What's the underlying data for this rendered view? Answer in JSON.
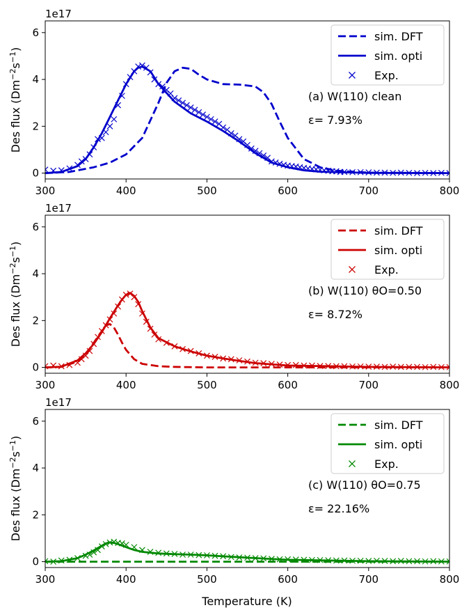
{
  "figure": {
    "xlabel": "Temperature (K)",
    "ylabel_main": "Des flux (Dm",
    "ylabel_sup1": "−2",
    "ylabel_mid": "s",
    "ylabel_sup2": "−1",
    "ylabel_end": ")",
    "offset_label": "1e17"
  },
  "chart_data": [
    {
      "type": "line",
      "panel_label": "(a) W(110) clean",
      "error_label": "ε= 7.93%",
      "color": "#0000cc",
      "xlim": [
        300,
        800
      ],
      "ylim": [
        -0.25,
        6.5
      ],
      "x_ticks": [
        "300",
        "400",
        "500",
        "600",
        "700",
        "800"
      ],
      "y_ticks": [
        "0",
        "2",
        "4",
        "6"
      ],
      "legend": {
        "position": "top-right",
        "dft": "sim. DFT",
        "opti": "sim. opti",
        "exp": "Exp."
      },
      "series": [
        {
          "name": "sim. DFT",
          "style": "dashed",
          "x": [
            300,
            330,
            360,
            380,
            400,
            420,
            440,
            450,
            460,
            470,
            480,
            490,
            500,
            520,
            540,
            560,
            570,
            580,
            590,
            600,
            620,
            640,
            660,
            700,
            800
          ],
          "y": [
            0,
            0.05,
            0.25,
            0.45,
            0.8,
            1.5,
            3.0,
            3.85,
            4.35,
            4.5,
            4.45,
            4.2,
            4.0,
            3.8,
            3.78,
            3.7,
            3.45,
            2.95,
            2.2,
            1.5,
            0.6,
            0.25,
            0.1,
            0.02,
            0
          ]
        },
        {
          "name": "sim. opti",
          "style": "solid",
          "x": [
            300,
            320,
            340,
            350,
            360,
            370,
            380,
            390,
            400,
            410,
            415,
            420,
            430,
            440,
            460,
            480,
            500,
            520,
            540,
            560,
            580,
            600,
            620,
            640,
            700,
            800
          ],
          "y": [
            0,
            0.05,
            0.3,
            0.6,
            1.1,
            1.7,
            2.4,
            3.1,
            3.8,
            4.35,
            4.5,
            4.55,
            4.35,
            3.8,
            3.05,
            2.55,
            2.2,
            1.8,
            1.35,
            0.85,
            0.45,
            0.25,
            0.12,
            0.06,
            0.01,
            0
          ]
        },
        {
          "name": "Exp.",
          "style": "markers",
          "x": [
            300,
            310,
            320,
            330,
            340,
            345,
            350,
            355,
            360,
            365,
            370,
            375,
            380,
            385,
            390,
            395,
            400,
            405,
            410,
            415,
            420,
            425,
            430,
            435,
            440,
            445,
            450,
            455,
            460,
            465,
            470,
            475,
            480,
            485,
            490,
            495,
            500,
            505,
            510,
            515,
            520,
            525,
            530,
            535,
            540,
            545,
            550,
            555,
            560,
            565,
            570,
            575,
            580,
            585,
            590,
            595,
            600,
            605,
            610,
            615,
            620,
            625,
            630,
            635,
            640,
            645,
            650,
            655,
            660,
            665,
            670,
            680,
            690,
            700,
            710,
            720,
            730,
            740,
            750,
            760,
            770,
            780,
            790,
            800
          ],
          "y": [
            0.15,
            0.1,
            0.12,
            0.2,
            0.35,
            0.5,
            0.6,
            0.8,
            1.1,
            1.45,
            1.5,
            1.75,
            2.0,
            2.3,
            2.9,
            3.3,
            3.8,
            4.1,
            4.35,
            4.55,
            4.6,
            4.5,
            4.3,
            4.0,
            3.8,
            3.7,
            3.55,
            3.4,
            3.2,
            3.1,
            3.0,
            2.9,
            2.8,
            2.7,
            2.6,
            2.5,
            2.4,
            2.3,
            2.2,
            2.1,
            1.95,
            1.85,
            1.7,
            1.6,
            1.45,
            1.35,
            1.2,
            1.05,
            0.95,
            0.85,
            0.75,
            0.65,
            0.5,
            0.45,
            0.4,
            0.35,
            0.32,
            0.3,
            0.28,
            0.25,
            0.22,
            0.2,
            0.18,
            0.16,
            0.14,
            0.12,
            0.1,
            0.08,
            0.08,
            0.05,
            0.05,
            0.04,
            0.04,
            0.03,
            0.02,
            0.02,
            0.01,
            0.02,
            0.01,
            0,
            0.01,
            0,
            0.01,
            0
          ]
        }
      ]
    },
    {
      "type": "line",
      "panel_label": "(b) W(110) θO=0.50",
      "error_label": "ε= 8.72%",
      "color": "#cc0000",
      "xlim": [
        300,
        800
      ],
      "ylim": [
        -0.25,
        6.5
      ],
      "x_ticks": [
        "300",
        "400",
        "500",
        "600",
        "700",
        "800"
      ],
      "y_ticks": [
        "0",
        "2",
        "4",
        "6"
      ],
      "legend": {
        "position": "top-right",
        "dft": "sim. DFT",
        "opti": "sim. opti",
        "exp": "Exp."
      },
      "series": [
        {
          "name": "sim. DFT",
          "style": "dashed",
          "x": [
            300,
            320,
            340,
            350,
            360,
            370,
            375,
            380,
            385,
            390,
            395,
            400,
            410,
            420,
            440,
            460,
            500,
            800
          ],
          "y": [
            0,
            0.02,
            0.25,
            0.55,
            1.05,
            1.55,
            1.8,
            1.85,
            1.7,
            1.4,
            1.05,
            0.75,
            0.35,
            0.15,
            0.05,
            0.02,
            0,
            0
          ]
        },
        {
          "name": "sim. opti",
          "style": "solid",
          "x": [
            300,
            320,
            340,
            350,
            360,
            370,
            380,
            390,
            395,
            400,
            405,
            410,
            415,
            420,
            430,
            440,
            460,
            480,
            500,
            520,
            540,
            560,
            600,
            700,
            800
          ],
          "y": [
            0,
            0.03,
            0.3,
            0.6,
            1.0,
            1.5,
            2.1,
            2.65,
            2.9,
            3.1,
            3.18,
            3.05,
            2.8,
            2.4,
            1.7,
            1.25,
            0.9,
            0.68,
            0.5,
            0.38,
            0.28,
            0.18,
            0.08,
            0.02,
            0
          ]
        },
        {
          "name": "Exp.",
          "style": "markers",
          "x": [
            300,
            310,
            320,
            330,
            340,
            345,
            350,
            355,
            360,
            365,
            370,
            375,
            380,
            385,
            390,
            395,
            400,
            405,
            410,
            415,
            420,
            425,
            430,
            435,
            440,
            450,
            460,
            470,
            480,
            490,
            500,
            510,
            520,
            530,
            540,
            550,
            560,
            570,
            580,
            590,
            600,
            610,
            620,
            630,
            640,
            650,
            660,
            670,
            680,
            690,
            700,
            710,
            720,
            730,
            740,
            750,
            760,
            770,
            780,
            790,
            800
          ],
          "y": [
            0.05,
            0.08,
            0.05,
            0.1,
            0.2,
            0.35,
            0.5,
            0.7,
            1.0,
            1.3,
            1.55,
            1.8,
            2.05,
            2.3,
            2.6,
            2.9,
            3.1,
            3.15,
            3.0,
            2.7,
            2.3,
            1.95,
            1.65,
            1.4,
            1.2,
            1.05,
            0.9,
            0.78,
            0.7,
            0.6,
            0.5,
            0.45,
            0.38,
            0.35,
            0.3,
            0.25,
            0.2,
            0.18,
            0.15,
            0.12,
            0.1,
            0.1,
            0.08,
            0.08,
            0.06,
            0.06,
            0.05,
            0.05,
            0.04,
            0.04,
            0.03,
            0.03,
            0.02,
            0.03,
            0.02,
            0.02,
            0.02,
            0.01,
            0.02,
            0.01,
            0.01
          ]
        }
      ]
    },
    {
      "type": "line",
      "panel_label": "(c) W(110) θO=0.75",
      "error_label": "ε= 22.16%",
      "color": "#008800",
      "xlim": [
        300,
        800
      ],
      "ylim": [
        -0.25,
        6.5
      ],
      "x_ticks": [
        "300",
        "400",
        "500",
        "600",
        "700",
        "800"
      ],
      "y_ticks": [
        "0",
        "2",
        "4",
        "6"
      ],
      "legend": {
        "position": "top-right",
        "dft": "sim. DFT",
        "opti": "sim. opti",
        "exp": "Exp."
      },
      "series": [
        {
          "name": "sim. DFT",
          "style": "dashed",
          "x": [
            300,
            800
          ],
          "y": [
            0,
            0
          ]
        },
        {
          "name": "sim. opti",
          "style": "solid",
          "x": [
            300,
            320,
            340,
            350,
            360,
            370,
            375,
            380,
            385,
            390,
            400,
            410,
            420,
            440,
            460,
            480,
            500,
            520,
            540,
            560,
            600,
            700,
            800
          ],
          "y": [
            0,
            0.02,
            0.15,
            0.3,
            0.48,
            0.68,
            0.78,
            0.82,
            0.8,
            0.75,
            0.62,
            0.5,
            0.42,
            0.35,
            0.32,
            0.3,
            0.27,
            0.23,
            0.19,
            0.15,
            0.08,
            0.02,
            0
          ]
        },
        {
          "name": "Exp.",
          "style": "markers",
          "x": [
            300,
            310,
            320,
            330,
            340,
            350,
            355,
            360,
            365,
            370,
            375,
            380,
            385,
            390,
            395,
            400,
            410,
            420,
            430,
            440,
            450,
            460,
            470,
            480,
            490,
            500,
            510,
            520,
            530,
            540,
            550,
            560,
            570,
            580,
            590,
            600,
            610,
            620,
            630,
            640,
            650,
            660,
            670,
            680,
            690,
            700,
            710,
            720,
            730,
            740,
            750,
            760,
            770,
            780,
            790,
            800
          ],
          "y": [
            0.02,
            0,
            0.05,
            0.08,
            0.15,
            0.25,
            0.3,
            0.4,
            0.5,
            0.65,
            0.75,
            0.82,
            0.85,
            0.8,
            0.78,
            0.72,
            0.62,
            0.5,
            0.42,
            0.38,
            0.35,
            0.33,
            0.3,
            0.3,
            0.28,
            0.27,
            0.25,
            0.23,
            0.2,
            0.18,
            0.17,
            0.15,
            0.14,
            0.12,
            0.1,
            0.1,
            0.09,
            0.08,
            0.07,
            0.07,
            0.06,
            0.05,
            0.05,
            0.04,
            0.04,
            0.03,
            0.04,
            0.03,
            0.02,
            0.03,
            0.02,
            0.02,
            0.01,
            0.02,
            0.01,
            0.01
          ]
        }
      ]
    }
  ]
}
